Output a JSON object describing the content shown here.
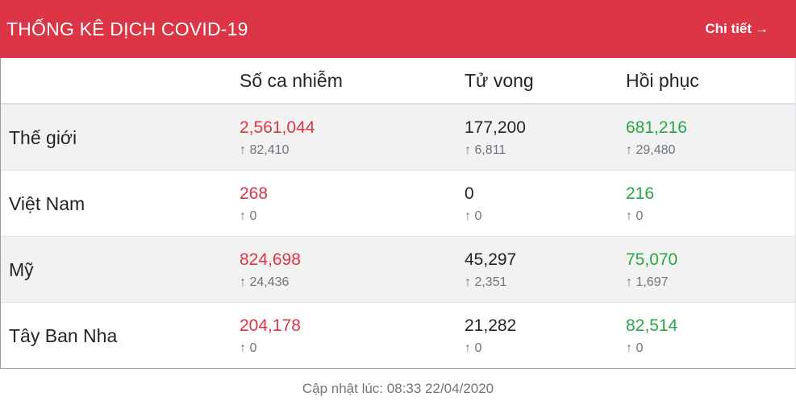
{
  "header": {
    "title": "THỐNG KÊ DỊCH COVID-19",
    "detail_label": "Chi tiết",
    "detail_arrow": "→"
  },
  "columns": [
    "",
    "Số ca nhiễm",
    "Tử vong",
    "Hồi phục"
  ],
  "arrow_symbol": "↑",
  "rows": [
    {
      "country": "Thế giới",
      "cases": "2,561,044",
      "cases_delta": "82,410",
      "deaths": "177,200",
      "deaths_delta": "6,811",
      "recovered": "681,216",
      "recovered_delta": "29,480"
    },
    {
      "country": "Việt Nam",
      "cases": "268",
      "cases_delta": "0",
      "deaths": "0",
      "deaths_delta": "0",
      "recovered": "216",
      "recovered_delta": "0"
    },
    {
      "country": "Mỹ",
      "cases": "824,698",
      "cases_delta": "24,436",
      "deaths": "45,297",
      "deaths_delta": "2,351",
      "recovered": "75,070",
      "recovered_delta": "1,697"
    },
    {
      "country": "Tây Ban Nha",
      "cases": "204,178",
      "cases_delta": "0",
      "deaths": "21,282",
      "deaths_delta": "0",
      "recovered": "82,514",
      "recovered_delta": "0"
    }
  ],
  "footer": {
    "label": "Cập nhật lúc:",
    "timestamp": "08:33 22/04/2020"
  },
  "colors": {
    "header_bg": "#dc3545",
    "cases": "#dc3545",
    "recovered": "#28a745",
    "deaths": "#212529",
    "muted": "#6c757d"
  },
  "icons": {
    "detail": "arrow-right-icon",
    "delta": "arrow-up-icon"
  }
}
